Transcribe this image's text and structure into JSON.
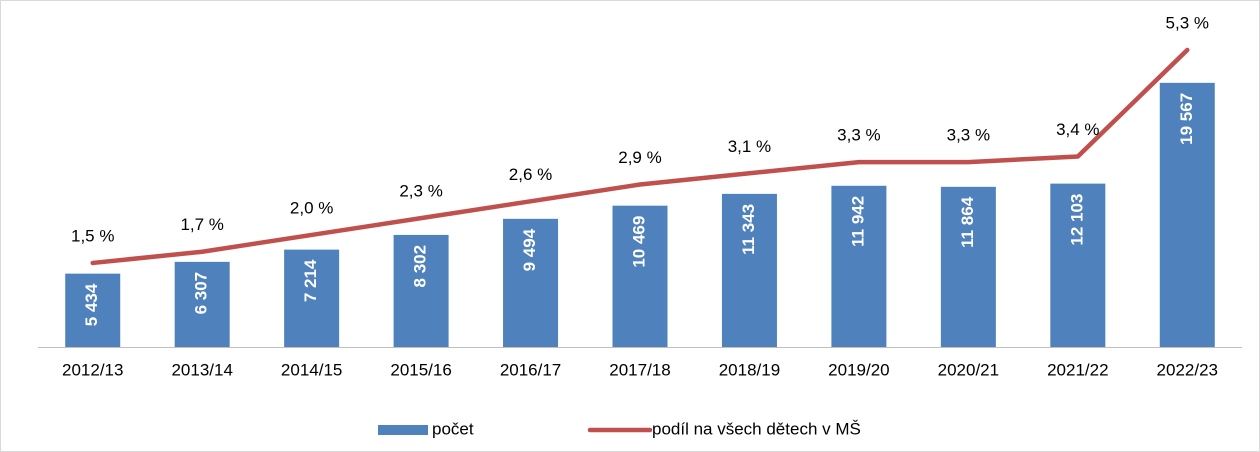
{
  "chart_data": {
    "type": "bar-line",
    "categories": [
      "2012/13",
      "2013/14",
      "2014/15",
      "2015/16",
      "2016/17",
      "2017/18",
      "2018/19",
      "2019/20",
      "2020/21",
      "2021/22",
      "2022/23"
    ],
    "series": [
      {
        "name": "počet",
        "type": "bar",
        "color": "#4f81bd",
        "values": [
          5434,
          6307,
          7214,
          8302,
          9494,
          10469,
          11343,
          11942,
          11864,
          12103,
          19567
        ],
        "value_labels": [
          "5 434",
          "6 307",
          "7 214",
          "8 302",
          "9 494",
          "10 469",
          "11 343",
          "11 942",
          "11 864",
          "12 103",
          "19 567"
        ]
      },
      {
        "name": "podíl na všech dětech v MŠ",
        "type": "line",
        "axis": "y2",
        "color": "#c0504d",
        "values": [
          1.5,
          1.7,
          2.0,
          2.3,
          2.6,
          2.9,
          3.1,
          3.3,
          3.3,
          3.4,
          5.3
        ],
        "value_labels": [
          "1,5 %",
          "1,7 %",
          "2,0 %",
          "2,3 %",
          "2,6 %",
          "2,9 %",
          "3,1 %",
          "3,3 %",
          "3,3 %",
          "3,4 %",
          "5,3 %"
        ]
      }
    ],
    "ylim": [
      0,
      22000
    ],
    "y2lim": [
      0,
      5.3
    ],
    "legend": "bottom"
  }
}
